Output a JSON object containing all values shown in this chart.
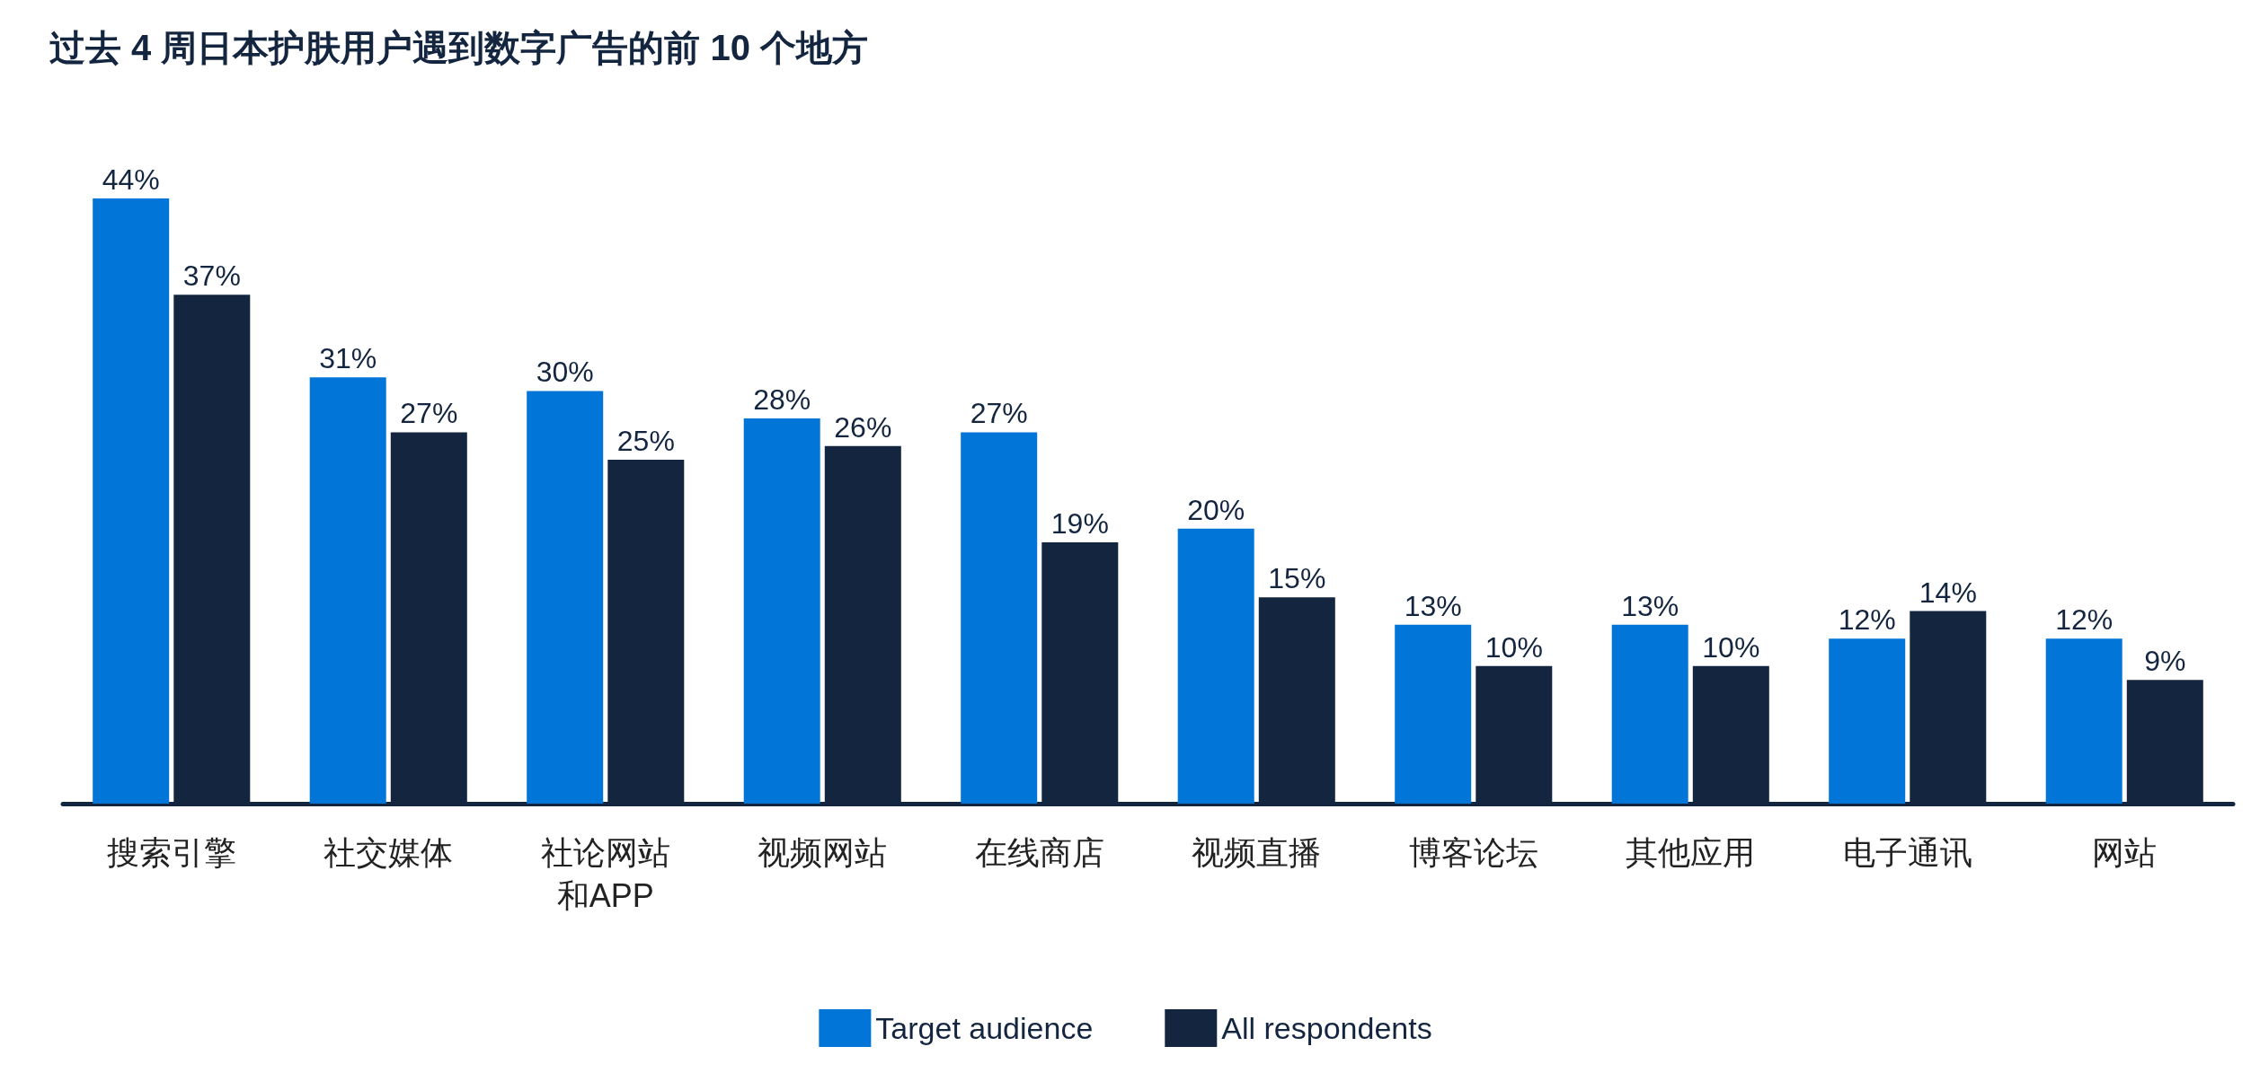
{
  "chart_data": {
    "type": "bar",
    "title": "过去 4 周日本护肤用户遇到数字广告的前 10 个地方",
    "categories": [
      "搜索引擎",
      "社交媒体",
      "社论网站和APP",
      "视频网站",
      "在线商店",
      "视频直播",
      "博客论坛",
      "其他应用",
      "电子通讯",
      "网站"
    ],
    "series": [
      {
        "name": "Target audience",
        "color": "#0175d8",
        "values": [
          44,
          31,
          30,
          28,
          27,
          20,
          13,
          13,
          12,
          12
        ],
        "value_labels": [
          "44%",
          "31%",
          "30%",
          "28%",
          "27%",
          "20%",
          "13%",
          "13%",
          "12%",
          "12%"
        ]
      },
      {
        "name": "All respondents",
        "color": "#13253f",
        "values": [
          37,
          27,
          25,
          26,
          19,
          15,
          10,
          10,
          14,
          9
        ],
        "value_labels": [
          "37%",
          "27%",
          "25%",
          "26%",
          "19%",
          "15%",
          "10%",
          "10%",
          "14%",
          "9%"
        ]
      }
    ],
    "legend": "bottom"
  }
}
